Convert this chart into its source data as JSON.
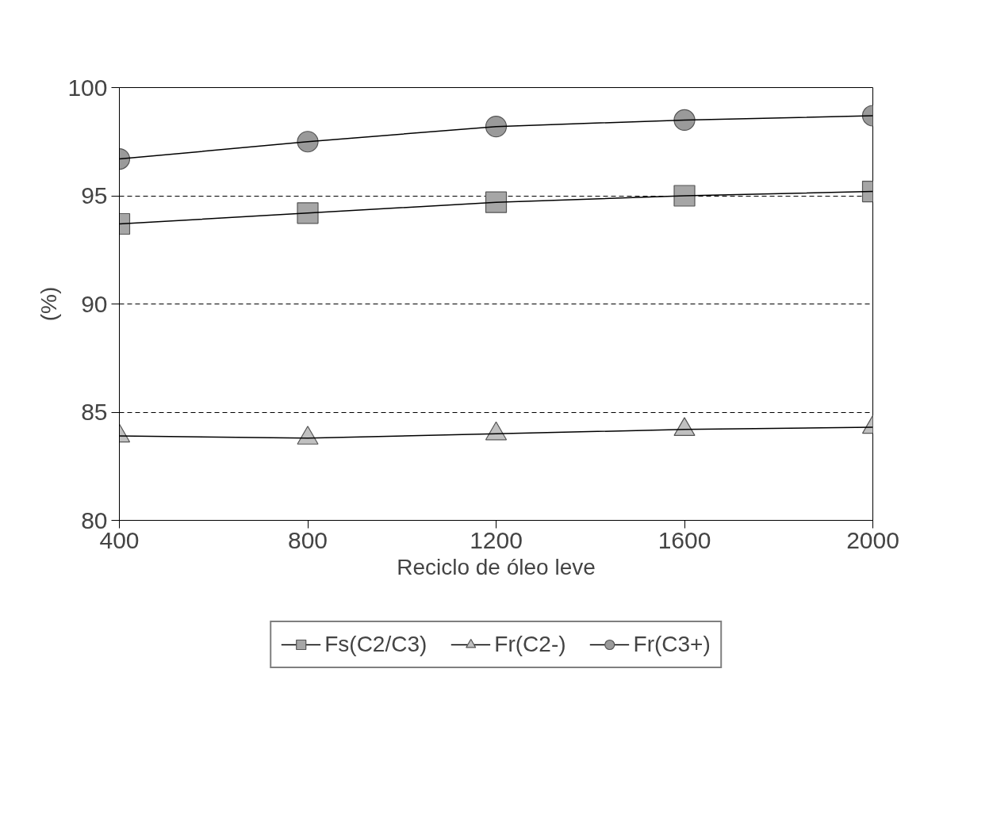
{
  "chart_data": {
    "type": "line",
    "xlabel": "Reciclo de óleo leve",
    "ylabel": "(%)",
    "x": [
      400,
      800,
      1200,
      1600,
      2000
    ],
    "xlim": [
      400,
      2000
    ],
    "xticks": [
      400,
      800,
      1200,
      1600,
      2000
    ],
    "ylim": [
      80,
      100
    ],
    "yticks": [
      80,
      85,
      90,
      95,
      100
    ],
    "grid": "y",
    "legend": "bottom",
    "series": [
      {
        "name": "Fs(C2/C3)",
        "color": "#a6a6a6",
        "marker": "square",
        "values": [
          93.7,
          94.2,
          94.7,
          95.0,
          95.2
        ]
      },
      {
        "name": "Fr(C2-)",
        "color": "#c0c0c0",
        "marker": "triangle",
        "values": [
          83.9,
          83.8,
          84.0,
          84.2,
          84.3
        ]
      },
      {
        "name": "Fr(C3+)",
        "color": "#9a9a9a",
        "marker": "circle",
        "values": [
          96.7,
          97.5,
          98.2,
          98.5,
          98.7
        ]
      }
    ]
  }
}
